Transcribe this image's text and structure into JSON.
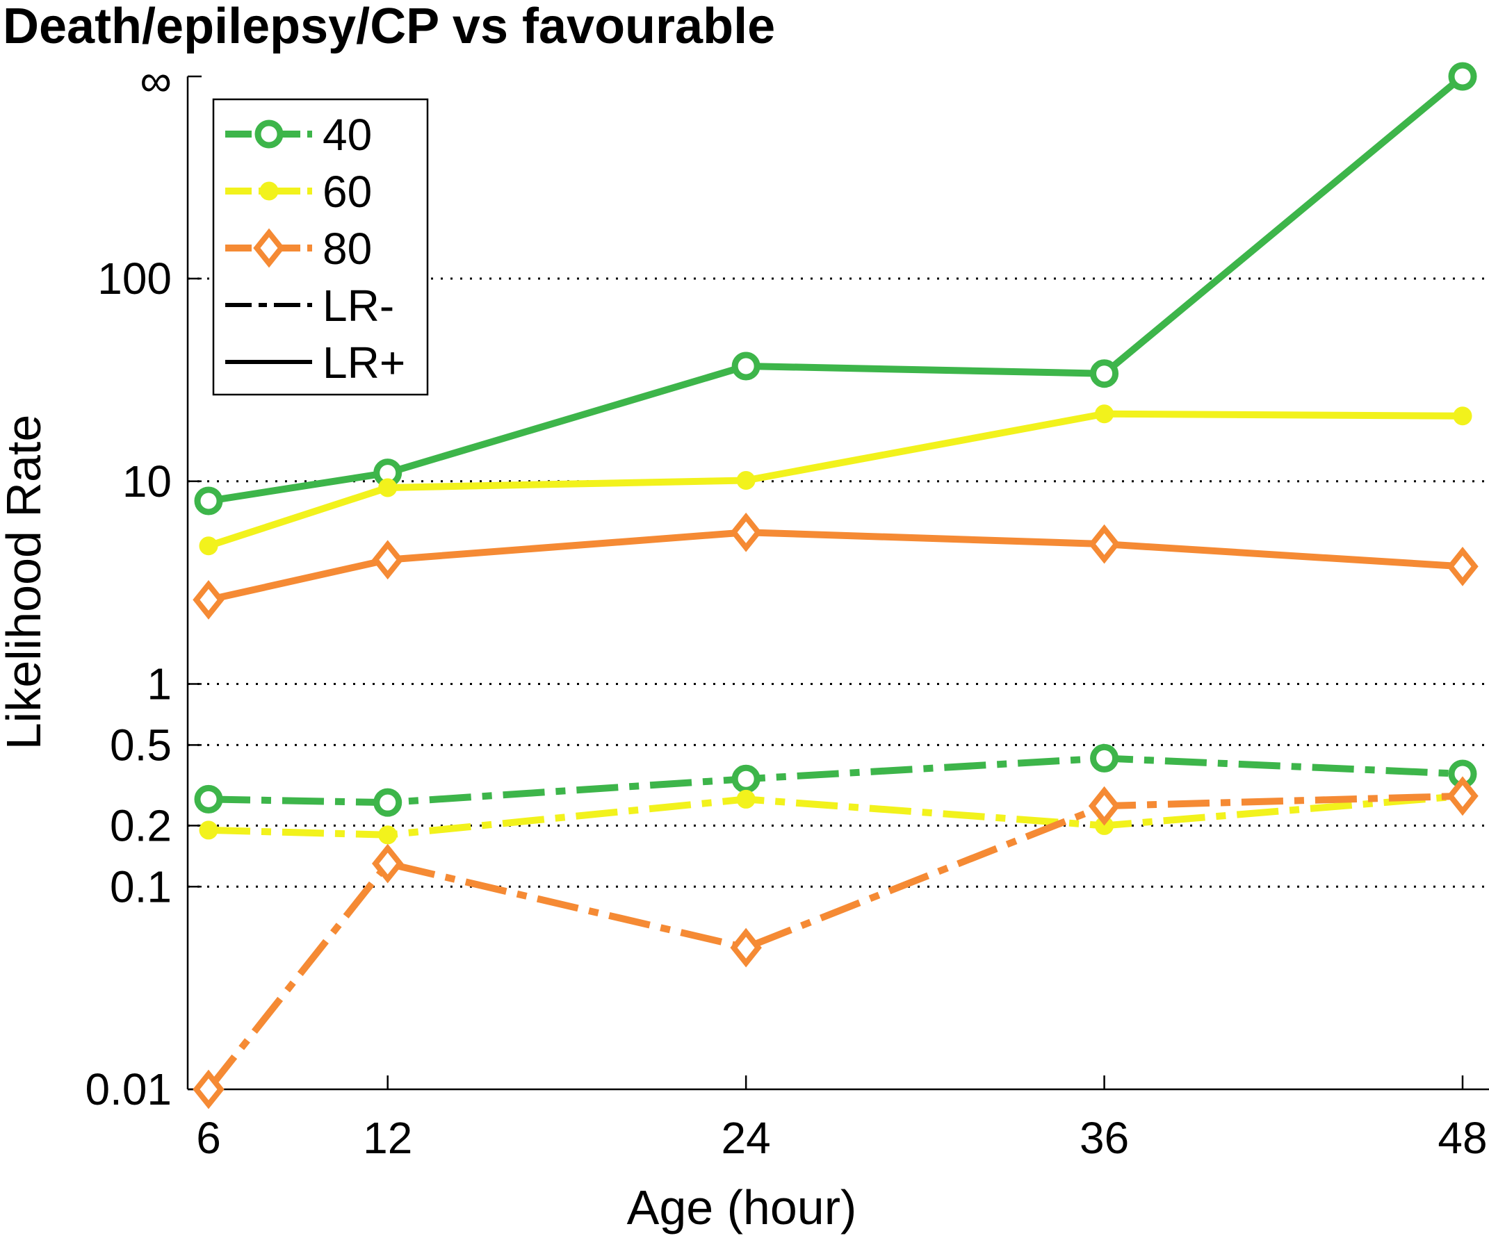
{
  "chart_data": {
    "type": "line",
    "title": "Death/epilepsy/CP vs favourable",
    "xlabel": "Age (hour)",
    "ylabel": "Likelihood Rate",
    "x_scale": "linear",
    "y_scale": "log",
    "x_ticks": [
      6,
      12,
      24,
      36,
      48
    ],
    "y_ticks": [
      {
        "value": 0.01,
        "label": "0.01"
      },
      {
        "value": 0.1,
        "label": "0.1"
      },
      {
        "value": 0.2,
        "label": "0.2"
      },
      {
        "value": 0.5,
        "label": "0.5"
      },
      {
        "value": 1,
        "label": "1"
      },
      {
        "value": 10,
        "label": "10"
      },
      {
        "value": 100,
        "label": "100"
      },
      {
        "value": "Infinity",
        "label": "∞"
      }
    ],
    "grid_y_values": [
      0.1,
      0.2,
      0.5,
      1,
      10,
      100
    ],
    "grid": "dotted horizontal",
    "legend_position": "top-left",
    "legend": [
      {
        "label": "40",
        "color": "#3db54a",
        "marker": "circle",
        "line": "dashdot"
      },
      {
        "label": "60",
        "color": "#f2f21c",
        "marker": "point",
        "line": "dashdot"
      },
      {
        "label": "80",
        "color": "#f58a34",
        "marker": "diamond",
        "line": "dashdot"
      },
      {
        "label": "LR-",
        "color": "#000000",
        "marker": "none",
        "line": "dashdot"
      },
      {
        "label": "LR+",
        "color": "#000000",
        "marker": "none",
        "line": "solid"
      }
    ],
    "series": [
      {
        "name": "40",
        "measure": "LR+",
        "color": "#3db54a",
        "marker": "circle",
        "line": "solid",
        "x": [
          6,
          12,
          24,
          36,
          48
        ],
        "y": [
          8,
          11,
          37,
          34,
          "Infinity"
        ]
      },
      {
        "name": "60",
        "measure": "LR+",
        "color": "#f2f21c",
        "marker": "point",
        "line": "solid",
        "x": [
          6,
          12,
          24,
          36,
          48
        ],
        "y": [
          4.8,
          9.3,
          10.1,
          21.5,
          21
        ]
      },
      {
        "name": "80",
        "measure": "LR+",
        "color": "#f58a34",
        "marker": "diamond",
        "line": "solid",
        "x": [
          6,
          12,
          24,
          36,
          48
        ],
        "y": [
          2.6,
          4.1,
          5.6,
          4.9,
          3.8
        ]
      },
      {
        "name": "40",
        "measure": "LR-",
        "color": "#3db54a",
        "marker": "circle",
        "line": "dashdot",
        "x": [
          6,
          12,
          24,
          36,
          48
        ],
        "y": [
          0.27,
          0.26,
          0.34,
          0.43,
          0.36
        ]
      },
      {
        "name": "60",
        "measure": "LR-",
        "color": "#f2f21c",
        "marker": "point",
        "line": "dashdot",
        "x": [
          6,
          12,
          24,
          36,
          48
        ],
        "y": [
          0.19,
          0.18,
          0.27,
          0.2,
          0.28
        ]
      },
      {
        "name": "80",
        "measure": "LR-",
        "color": "#f58a34",
        "marker": "diamond",
        "line": "dashdot",
        "x": [
          6,
          12,
          24,
          36,
          48
        ],
        "y": [
          0.01,
          0.13,
          0.05,
          0.25,
          0.28
        ]
      }
    ]
  }
}
